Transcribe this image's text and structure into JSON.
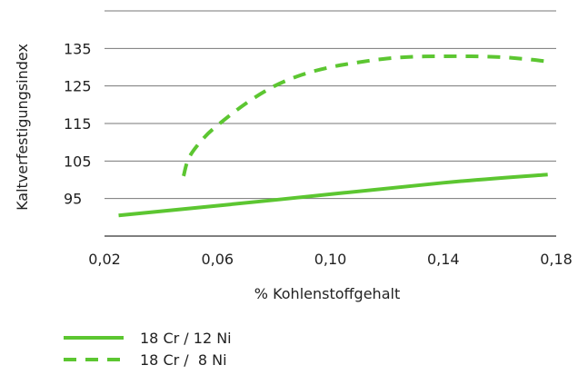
{
  "chart_data": {
    "type": "line",
    "xlabel": "% Kohlenstoffgehalt",
    "ylabel": "Kaltverfestigungsindex",
    "xlim": [
      0.02,
      0.18
    ],
    "ylim": [
      85,
      145
    ],
    "x_ticks": [
      0.02,
      0.06,
      0.1,
      0.14,
      0.18
    ],
    "x_tick_labels": [
      "0,02",
      "0,06",
      "0,10",
      "0,14",
      "0,18"
    ],
    "y_ticks": [
      95,
      105,
      115,
      125,
      135
    ],
    "y_tick_labels": [
      "95",
      "105",
      "115",
      "125",
      "135"
    ],
    "grid": "horizontal",
    "series": [
      {
        "name": "18 Cr / 12 Ni",
        "style": "solid",
        "color": "#5cc631",
        "x": [
          0.025,
          0.08,
          0.14,
          0.177
        ],
        "y": [
          90.5,
          94.6,
          99.2,
          101.4
        ]
      },
      {
        "name": "18 Cr /  8 Ni",
        "style": "dashed",
        "color": "#5cc631",
        "x": [
          0.048,
          0.05,
          0.055,
          0.06,
          0.07,
          0.08,
          0.09,
          0.1,
          0.11,
          0.12,
          0.13,
          0.14,
          0.15,
          0.16,
          0.17,
          0.177
        ],
        "y": [
          101,
          106,
          111,
          114.5,
          120.3,
          124.9,
          128,
          130,
          131.3,
          132.3,
          132.8,
          132.9,
          132.9,
          132.7,
          132.1,
          131.5
        ]
      }
    ],
    "legend_position": "bottom-left"
  }
}
